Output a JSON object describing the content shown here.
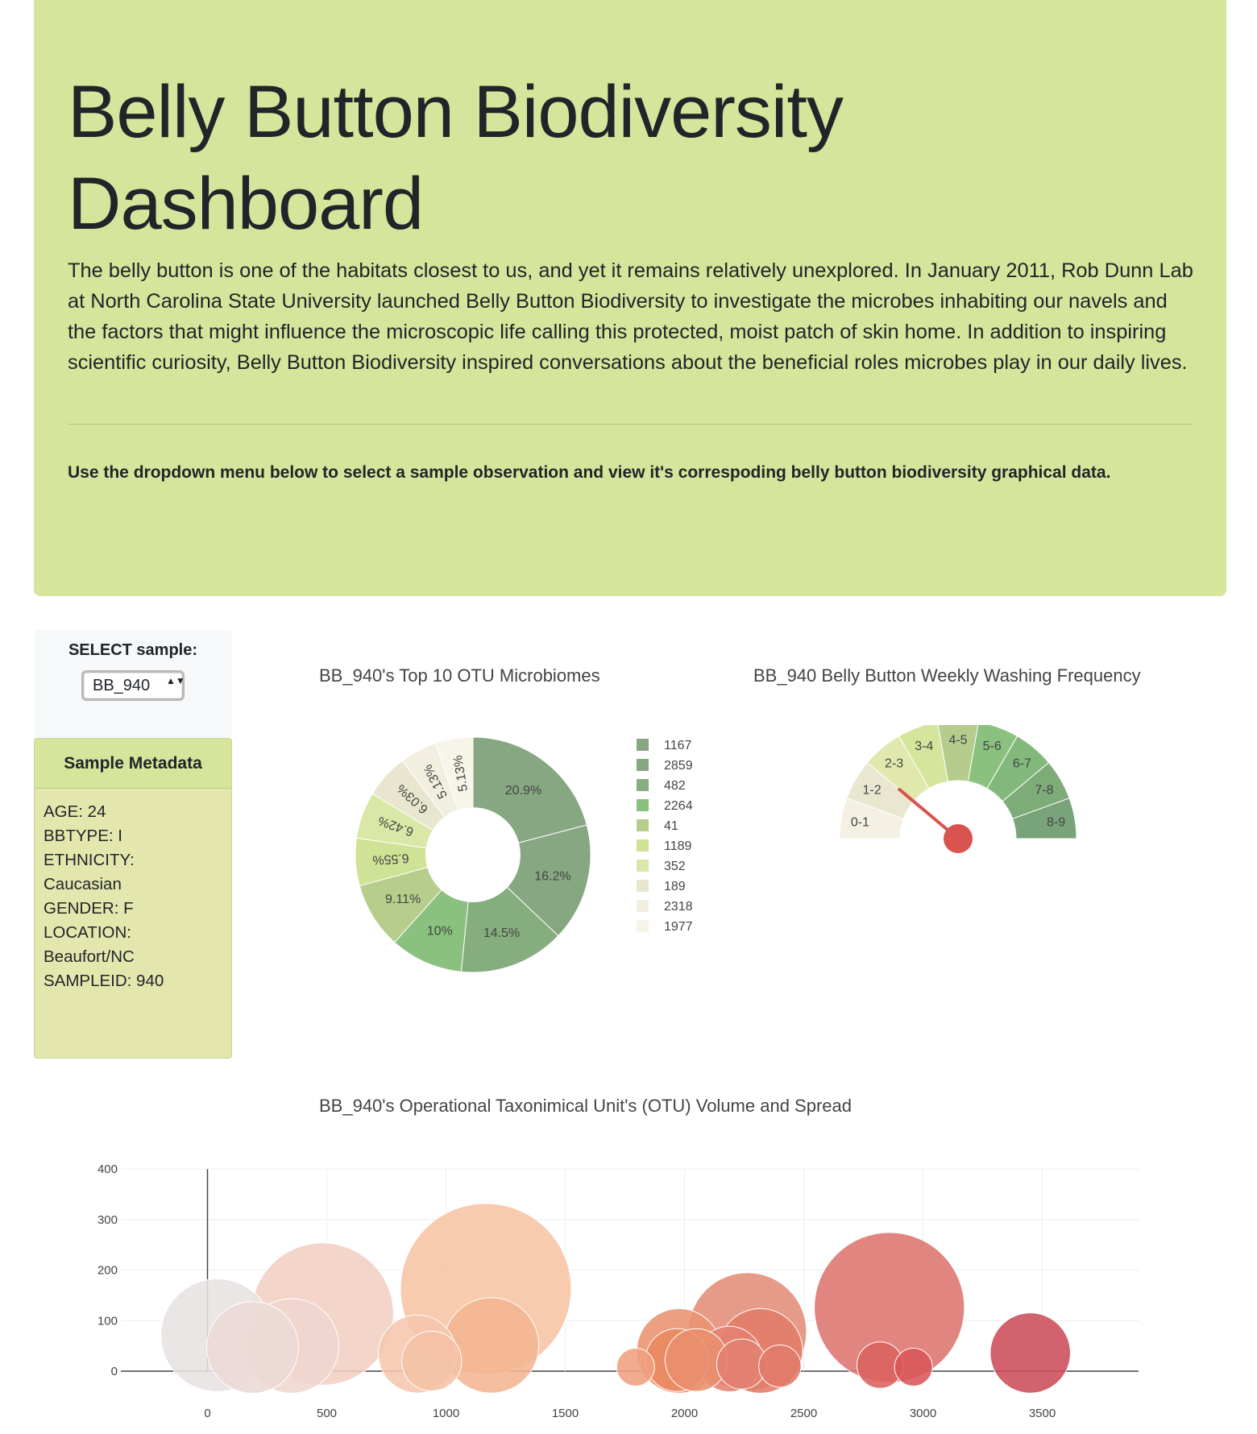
{
  "header": {
    "title": "Belly Button Biodiversity Dashboard",
    "lead": "The belly button is one of the habitats closest to us, and yet it remains relatively unexplored. In January 2011, Rob Dunn Lab at North Carolina State University launched Belly Button Biodiversity to investigate the microbes inhabiting our navels and the factors that might influence the microscopic life calling this protected, moist patch of skin home. In addition to inspiring scientific curiosity, Belly Button Biodiversity inspired conversations about the beneficial roles microbes play in our daily lives.",
    "instructions": "Use the dropdown menu below to select a sample observation and view it's correspoding belly button biodiversity graphical data."
  },
  "selector": {
    "label": "SELECT sample:",
    "selected": "BB_940",
    "arrows": "▲▼"
  },
  "metadata": {
    "title": "Sample Metadata",
    "lines": [
      "AGE: 24",
      "BBTYPE: I",
      "ETHNICITY:",
      "Caucasian",
      "GENDER: F",
      "LOCATION:",
      "Beaufort/NC",
      "SAMPLEID: 940"
    ]
  },
  "chart_data": [
    {
      "type": "pie",
      "title": "BB_940's Top 10 OTU Microbiomes",
      "hole": 0.4,
      "labels": [
        "1167",
        "2859",
        "482",
        "2264",
        "41",
        "1189",
        "352",
        "189",
        "2318",
        "1977"
      ],
      "values": [
        163,
        126,
        113,
        78,
        71,
        51,
        50,
        47,
        40,
        40
      ],
      "percent_labels": [
        "20.9%",
        "16.2%",
        "14.5%",
        "10%",
        "9.11%",
        "6.55%",
        "6.42%",
        "6.03%",
        "5.13%",
        "5.13%"
      ],
      "colors": [
        "#86a781",
        "#86a781",
        "#86ad7e",
        "#8ac17f",
        "#b6cd8b",
        "#cfe295",
        "#d9e8a6",
        "#e9e6cf",
        "#f2efe1",
        "#f7f4ea"
      ],
      "legend": "right"
    },
    {
      "type": "gauge",
      "title": "BB_940 Belly Button Weekly Washing Frequency",
      "range": [
        0,
        9
      ],
      "segments": [
        "0-1",
        "1-2",
        "2-3",
        "3-4",
        "4-5",
        "5-6",
        "6-7",
        "7-8",
        "8-9"
      ],
      "segment_colors": [
        "#f4f0e4",
        "#e9e7cf",
        "#e0e8ad",
        "#d5e59b",
        "#b5cc8d",
        "#8ac17f",
        "#83b87c",
        "#7eac78",
        "#79a47a"
      ],
      "value": 2,
      "needle_color": "#d9534f"
    },
    {
      "type": "scatter",
      "mode": "bubble",
      "title": "BB_940's Operational Taxonimical Unit's (OTU) Volume and Spread",
      "xlim": [
        -400,
        3900
      ],
      "ylim": [
        0,
        400
      ],
      "x_ticks": [
        0,
        500,
        1000,
        1500,
        2000,
        2500,
        3000,
        3500
      ],
      "y_ticks": [
        0,
        100,
        200,
        300,
        400
      ],
      "grid": true,
      "colorscale": "earth-reds",
      "points": [
        {
          "x": 41,
          "y": 71,
          "size": 71,
          "color": "#e6e3e1"
        },
        {
          "x": 189,
          "y": 47,
          "size": 47,
          "color": "#ecdad6"
        },
        {
          "x": 352,
          "y": 50,
          "size": 50,
          "color": "#efd6cf"
        },
        {
          "x": 482,
          "y": 113,
          "size": 113,
          "color": "#f1d0c2"
        },
        {
          "x": 880,
          "y": 34,
          "size": 34,
          "color": "#f5c6ac"
        },
        {
          "x": 940,
          "y": 20,
          "size": 20,
          "color": "#f5c1a6"
        },
        {
          "x": 1167,
          "y": 163,
          "size": 163,
          "color": "#f7c3a3"
        },
        {
          "x": 1189,
          "y": 51,
          "size": 51,
          "color": "#f3b592"
        },
        {
          "x": 1795,
          "y": 8,
          "size": 8,
          "color": "#ef9f7e"
        },
        {
          "x": 1977,
          "y": 40,
          "size": 40,
          "color": "#ea9370"
        },
        {
          "x": 1968,
          "y": 22,
          "size": 22,
          "color": "#e9875f"
        },
        {
          "x": 2050,
          "y": 22,
          "size": 22,
          "color": "#e9906e"
        },
        {
          "x": 2264,
          "y": 78,
          "size": 78,
          "color": "#e28d78"
        },
        {
          "x": 2318,
          "y": 40,
          "size": 40,
          "color": "#e27c68"
        },
        {
          "x": 2188,
          "y": 24,
          "size": 24,
          "color": "#e48172"
        },
        {
          "x": 2240,
          "y": 14,
          "size": 14,
          "color": "#e28170"
        },
        {
          "x": 2400,
          "y": 10,
          "size": 10,
          "color": "#e07a6a"
        },
        {
          "x": 2859,
          "y": 126,
          "size": 126,
          "color": "#dd7470"
        },
        {
          "x": 2820,
          "y": 12,
          "size": 12,
          "color": "#d9625f"
        },
        {
          "x": 2960,
          "y": 8,
          "size": 8,
          "color": "#d9575a"
        },
        {
          "x": 3450,
          "y": 36,
          "size": 36,
          "color": "#cc4d5a"
        }
      ]
    }
  ]
}
